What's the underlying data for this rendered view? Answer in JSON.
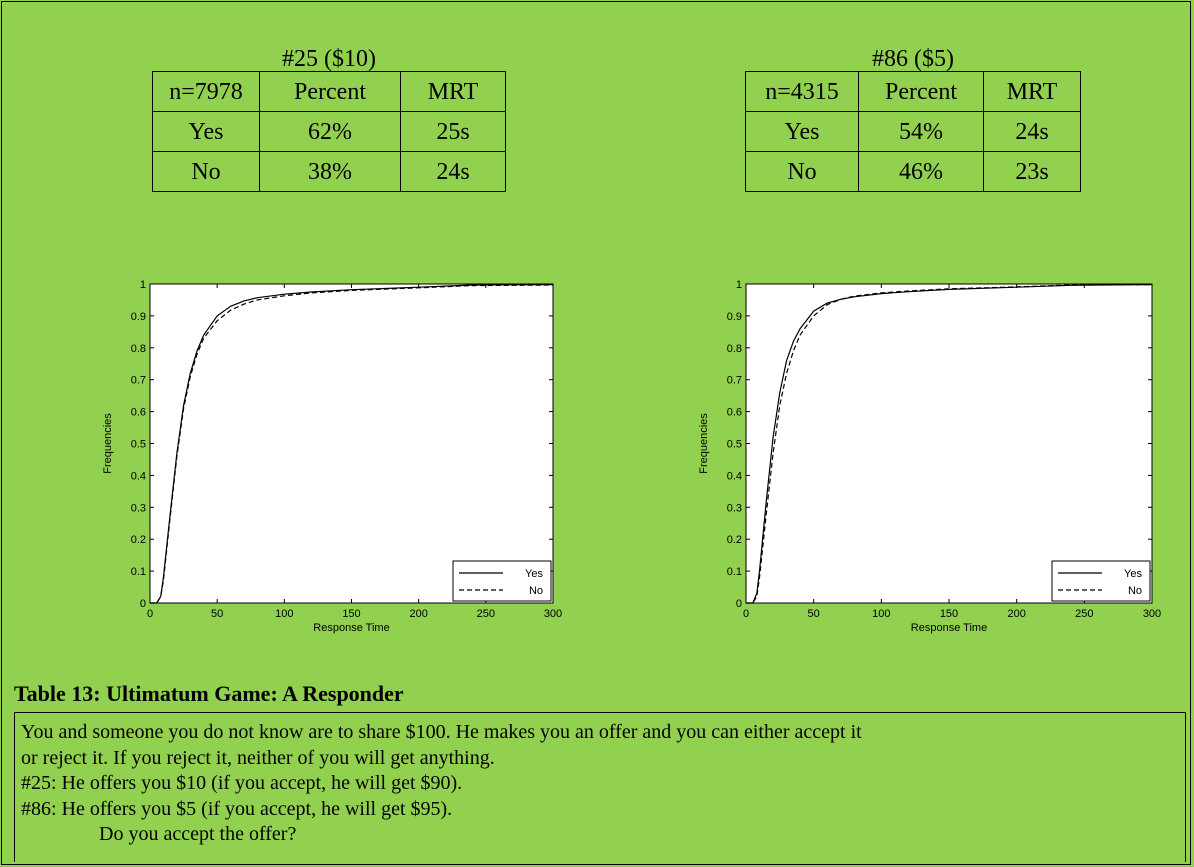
{
  "tables": [
    {
      "caption": "#25 ($10)",
      "header": [
        "n=7978",
        "Percent",
        "MRT"
      ],
      "rows": [
        [
          "Yes",
          "62%",
          "25s"
        ],
        [
          "No",
          "38%",
          "24s"
        ]
      ]
    },
    {
      "caption": "#86 ($5)",
      "header": [
        "n=4315",
        "Percent",
        "MRT"
      ],
      "rows": [
        [
          "Yes",
          "54%",
          "24s"
        ],
        [
          "No",
          "46%",
          "23s"
        ]
      ]
    }
  ],
  "chart_data": [
    {
      "type": "line",
      "title": "",
      "xlabel": "Response Time",
      "ylabel": "Frequencies",
      "xlim": [
        0,
        300
      ],
      "ylim": [
        0,
        1
      ],
      "xticks": [
        "0",
        "50",
        "100",
        "150",
        "200",
        "250",
        "300"
      ],
      "yticks": [
        "0",
        "0.1",
        "0.2",
        "0.3",
        "0.4",
        "0.5",
        "0.6",
        "0.7",
        "0.8",
        "0.9",
        "1"
      ],
      "legend": "bottom-right",
      "series": [
        {
          "name": "Yes",
          "style": "solid",
          "x": [
            0,
            5,
            8,
            10,
            15,
            20,
            25,
            30,
            35,
            40,
            50,
            60,
            70,
            80,
            100,
            120,
            150,
            200,
            240,
            300
          ],
          "y": [
            0,
            0.0,
            0.02,
            0.08,
            0.28,
            0.47,
            0.62,
            0.72,
            0.79,
            0.84,
            0.9,
            0.93,
            0.947,
            0.957,
            0.968,
            0.975,
            0.982,
            0.99,
            0.997,
            0.998
          ]
        },
        {
          "name": "No",
          "style": "dashed",
          "x": [
            0,
            5,
            8,
            10,
            15,
            20,
            25,
            30,
            35,
            40,
            50,
            60,
            70,
            80,
            100,
            120,
            150,
            200,
            240,
            300
          ],
          "y": [
            0,
            0.0,
            0.02,
            0.07,
            0.27,
            0.46,
            0.61,
            0.71,
            0.78,
            0.83,
            0.885,
            0.918,
            0.937,
            0.95,
            0.963,
            0.972,
            0.98,
            0.988,
            0.995,
            0.997
          ]
        }
      ]
    },
    {
      "type": "line",
      "title": "",
      "xlabel": "Response Time",
      "ylabel": "Frequencies",
      "xlim": [
        0,
        300
      ],
      "ylim": [
        0,
        1
      ],
      "xticks": [
        "0",
        "50",
        "100",
        "150",
        "200",
        "250",
        "300"
      ],
      "yticks": [
        "0",
        "0.1",
        "0.2",
        "0.3",
        "0.4",
        "0.5",
        "0.6",
        "0.7",
        "0.8",
        "0.9",
        "1"
      ],
      "legend": "bottom-right",
      "series": [
        {
          "name": "Yes",
          "style": "solid",
          "x": [
            0,
            5,
            8,
            10,
            15,
            20,
            25,
            30,
            35,
            40,
            50,
            60,
            70,
            80,
            100,
            120,
            150,
            200,
            240,
            300
          ],
          "y": [
            0,
            0.0,
            0.03,
            0.1,
            0.32,
            0.52,
            0.66,
            0.76,
            0.82,
            0.86,
            0.915,
            0.94,
            0.952,
            0.96,
            0.97,
            0.976,
            0.983,
            0.99,
            0.996,
            0.998
          ]
        },
        {
          "name": "No",
          "style": "dashed",
          "x": [
            0,
            5,
            8,
            10,
            15,
            20,
            25,
            30,
            35,
            40,
            50,
            60,
            70,
            80,
            100,
            120,
            150,
            200,
            240,
            300
          ],
          "y": [
            0,
            0.0,
            0.02,
            0.08,
            0.28,
            0.47,
            0.62,
            0.72,
            0.79,
            0.84,
            0.9,
            0.935,
            0.952,
            0.962,
            0.972,
            0.978,
            0.985,
            0.991,
            0.997,
            0.998
          ]
        }
      ]
    }
  ],
  "table_title": "Table 13: Ultimatum Game: A Responder",
  "question": {
    "line1": "You and someone you do not know are to share $100. He makes you an offer and you can either accept it",
    "line2": "or reject it. If you reject it, neither of you will get anything.",
    "line3": "#25: He offers you $10 (if you accept, he will get $90).",
    "line4": "#86: He offers you $5 (if you accept, he will get $95).",
    "line5": "Do you accept the offer?"
  }
}
